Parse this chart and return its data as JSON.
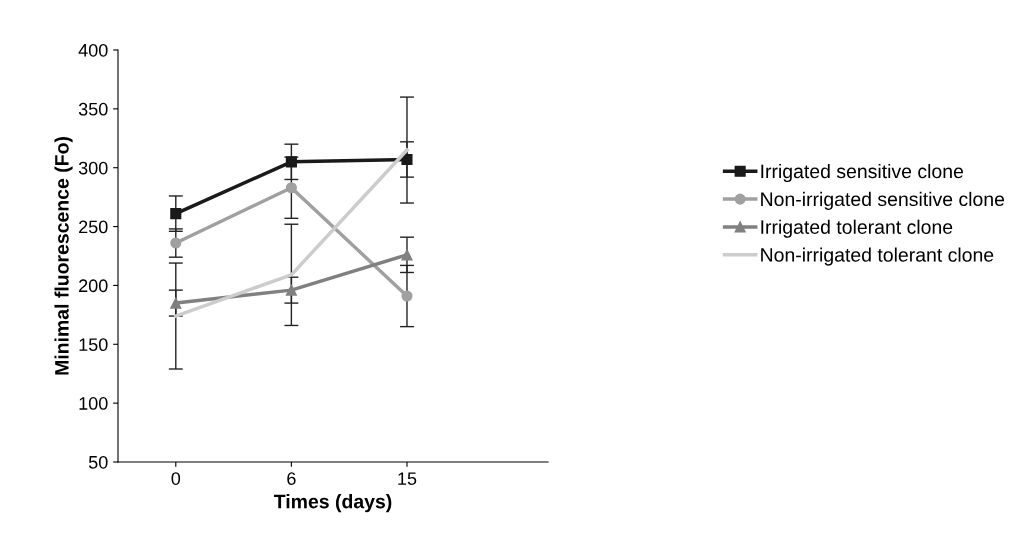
{
  "chart_data": {
    "type": "line",
    "xlabel": "Times (days)",
    "ylabel": "Minimal fluorescence (Fo)",
    "categories": [
      "0",
      "6",
      "15"
    ],
    "series": [
      {
        "name": "Irrigated sensitive clone",
        "color": "#1a1a1a",
        "marker": "square",
        "values": [
          261,
          305,
          307
        ],
        "errors": [
          15,
          15,
          15
        ]
      },
      {
        "name": "Non-irrigated sensitive clone",
        "color": "#a0a0a0",
        "marker": "circle",
        "values": [
          236,
          283,
          191
        ],
        "errors": [
          12,
          26,
          26
        ]
      },
      {
        "name": "Irrigated tolerant clone",
        "color": "#808080",
        "marker": "triangle",
        "values": [
          185,
          196,
          226
        ],
        "errors": [
          11,
          11,
          15
        ]
      },
      {
        "name": "Non-irrigated tolerant clone",
        "color": "#cccccc",
        "marker": "none",
        "values": [
          174,
          209,
          315
        ],
        "errors": [
          45,
          43,
          45
        ]
      }
    ],
    "ylim": [
      50,
      400
    ],
    "yticks": [
      50,
      100,
      150,
      200,
      250,
      300,
      350,
      400
    ],
    "grid": false,
    "legend": "right"
  }
}
